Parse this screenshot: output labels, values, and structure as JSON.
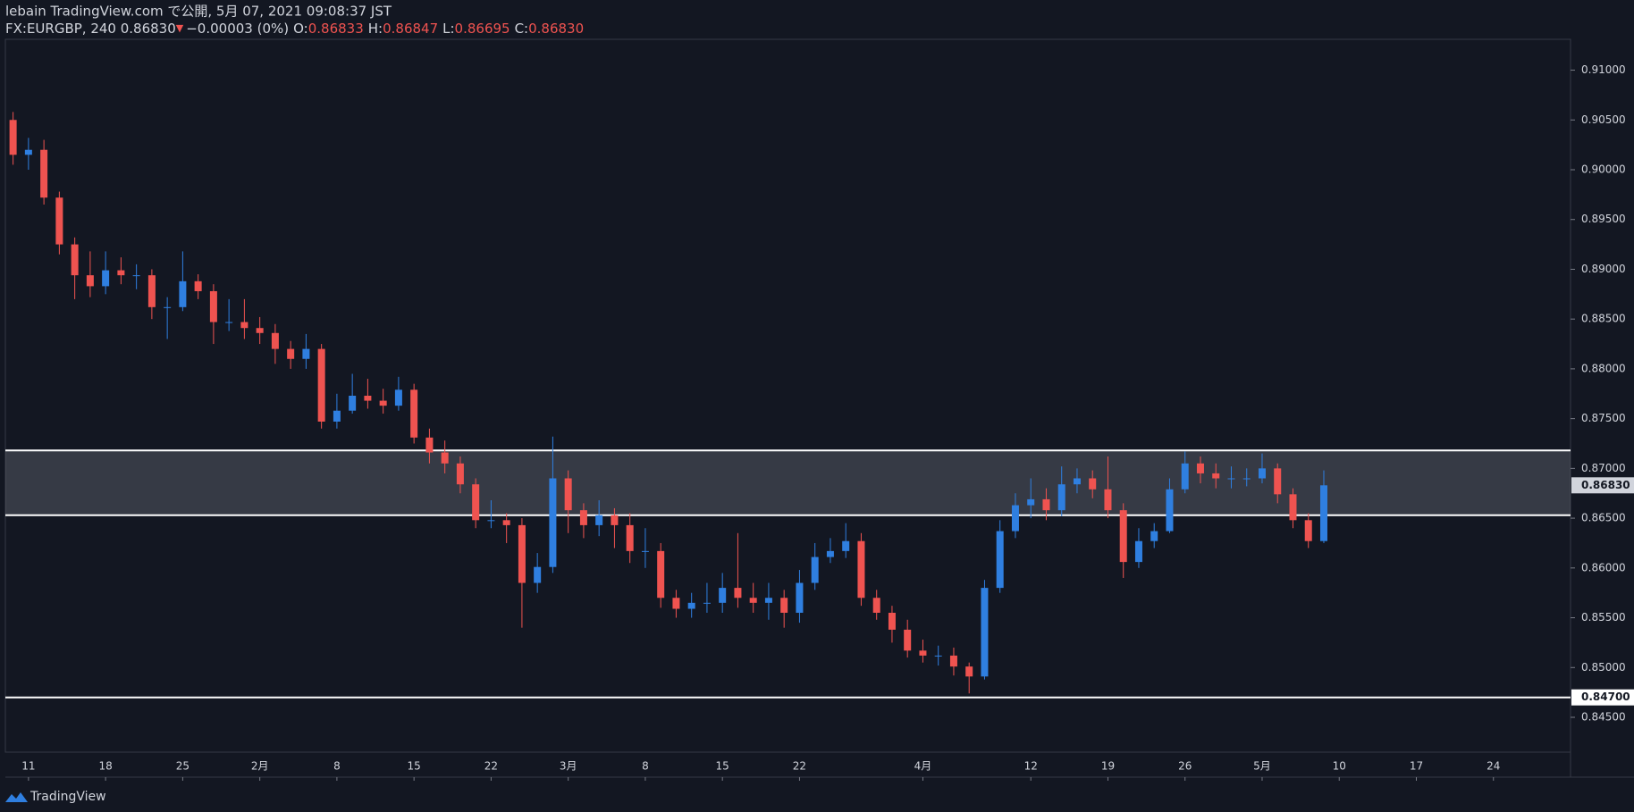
{
  "chart_data": {
    "type": "candlestick",
    "header": {
      "line1": "lebain TradingView.com で公開, 5月 07, 2021 09:08:37 JST",
      "symbol": "FX:EURGBP, 240 0.86830",
      "arrow": "▼",
      "change": "−0.00003 (0%)",
      "ohlc": [
        {
          "label": "O:",
          "value": "0.86833"
        },
        {
          "label": "H:",
          "value": "0.86847"
        },
        {
          "label": "L:",
          "value": "0.86695"
        },
        {
          "label": "C:",
          "value": "0.86830"
        }
      ]
    },
    "brand": "TradingView",
    "up_color": "#2f7fe0",
    "down_color": "#ef5350",
    "x": [
      -1,
      0,
      1,
      2,
      3,
      4,
      5,
      6,
      7,
      8,
      9,
      10,
      11,
      12,
      13,
      14,
      15,
      16,
      17,
      18,
      19,
      20,
      21,
      22,
      23,
      24,
      25,
      26,
      27,
      28,
      29,
      30,
      31,
      32,
      33,
      34,
      35,
      36,
      37,
      38,
      39,
      40,
      41,
      42,
      43,
      44,
      45,
      46,
      47,
      48,
      49,
      50,
      51,
      52,
      53,
      54,
      55,
      56,
      57,
      58,
      59,
      60,
      61,
      62,
      63,
      64,
      65,
      66,
      67,
      68,
      69,
      70,
      71,
      72,
      73,
      74,
      75,
      76,
      77,
      78,
      79,
      80,
      81,
      82,
      83,
      84
    ],
    "open": [
      0.905,
      0.9015,
      0.902,
      0.8972,
      0.8925,
      0.8894,
      0.8883,
      0.8899,
      0.8894,
      0.8894,
      0.8862,
      0.8862,
      0.8888,
      0.8878,
      0.8847,
      0.8847,
      0.8841,
      0.8836,
      0.882,
      0.881,
      0.882,
      0.8747,
      0.8758,
      0.8773,
      0.8768,
      0.8763,
      0.8779,
      0.8731,
      0.8716,
      0.8705,
      0.8684,
      0.8648,
      0.8648,
      0.8643,
      0.8585,
      0.8601,
      0.869,
      0.8658,
      0.8643,
      0.8653,
      0.8643,
      0.8617,
      0.8617,
      0.857,
      0.8559,
      0.8565,
      0.8565,
      0.858,
      0.857,
      0.8565,
      0.857,
      0.8555,
      0.8585,
      0.8611,
      0.8617,
      0.8627,
      0.857,
      0.8555,
      0.8538,
      0.8517,
      0.8512,
      0.8512,
      0.8501,
      0.8491,
      0.858,
      0.8637,
      0.8663,
      0.8669,
      0.8658,
      0.8684,
      0.869,
      0.8679,
      0.8658,
      0.8606,
      0.8627,
      0.8637,
      0.8679,
      0.8705,
      0.8695,
      0.869,
      0.869,
      0.869,
      0.87,
      0.8674,
      0.8648,
      0.8627
    ],
    "high": [
      0.9058,
      0.9032,
      0.903,
      0.8978,
      0.8932,
      0.8918,
      0.8918,
      0.8912,
      0.8905,
      0.89,
      0.8872,
      0.8918,
      0.8895,
      0.8885,
      0.887,
      0.887,
      0.8852,
      0.8845,
      0.8828,
      0.8835,
      0.8825,
      0.8775,
      0.8795,
      0.879,
      0.878,
      0.8792,
      0.8785,
      0.874,
      0.8728,
      0.8712,
      0.869,
      0.8668,
      0.8655,
      0.865,
      0.8615,
      0.8732,
      0.8698,
      0.8665,
      0.8668,
      0.866,
      0.8655,
      0.864,
      0.8625,
      0.8578,
      0.8575,
      0.8585,
      0.8595,
      0.8635,
      0.8585,
      0.8585,
      0.8578,
      0.8598,
      0.8625,
      0.863,
      0.8645,
      0.8635,
      0.8578,
      0.8562,
      0.8548,
      0.8528,
      0.8522,
      0.852,
      0.8505,
      0.8588,
      0.8648,
      0.8675,
      0.869,
      0.868,
      0.8702,
      0.87,
      0.8698,
      0.8712,
      0.8665,
      0.864,
      0.8645,
      0.869,
      0.8717,
      0.8712,
      0.8705,
      0.8702,
      0.87,
      0.8715,
      0.8705,
      0.868,
      0.8655,
      0.8698
    ],
    "low": [
      0.9005,
      0.9,
      0.8965,
      0.8915,
      0.887,
      0.8872,
      0.8875,
      0.8885,
      0.888,
      0.885,
      0.883,
      0.8858,
      0.887,
      0.8825,
      0.8838,
      0.883,
      0.8825,
      0.8805,
      0.88,
      0.88,
      0.874,
      0.874,
      0.8755,
      0.876,
      0.8755,
      0.8758,
      0.8725,
      0.8705,
      0.8695,
      0.8675,
      0.864,
      0.864,
      0.8625,
      0.854,
      0.8575,
      0.8595,
      0.8635,
      0.863,
      0.8632,
      0.862,
      0.8605,
      0.86,
      0.856,
      0.855,
      0.855,
      0.8555,
      0.8555,
      0.856,
      0.8555,
      0.8548,
      0.854,
      0.8545,
      0.8578,
      0.8605,
      0.861,
      0.8562,
      0.8548,
      0.8525,
      0.851,
      0.8505,
      0.8502,
      0.8492,
      0.8474,
      0.8488,
      0.8575,
      0.863,
      0.865,
      0.8648,
      0.8652,
      0.8675,
      0.867,
      0.865,
      0.859,
      0.86,
      0.862,
      0.8635,
      0.8675,
      0.8685,
      0.868,
      0.868,
      0.8682,
      0.8685,
      0.8665,
      0.864,
      0.862,
      0.8625
    ],
    "close": [
      0.9015,
      0.902,
      0.8972,
      0.8925,
      0.8894,
      0.8883,
      0.8899,
      0.8894,
      0.8894,
      0.8862,
      0.8862,
      0.8888,
      0.8878,
      0.8847,
      0.8847,
      0.8841,
      0.8836,
      0.882,
      0.881,
      0.882,
      0.8747,
      0.8758,
      0.8773,
      0.8768,
      0.8763,
      0.8779,
      0.8731,
      0.8716,
      0.8705,
      0.8684,
      0.8648,
      0.8648,
      0.8643,
      0.8585,
      0.8601,
      0.869,
      0.8658,
      0.8643,
      0.8653,
      0.8643,
      0.8617,
      0.8617,
      0.857,
      0.8559,
      0.8565,
      0.8565,
      0.858,
      0.857,
      0.8565,
      0.857,
      0.8555,
      0.8585,
      0.8611,
      0.8617,
      0.8627,
      0.857,
      0.8555,
      0.8538,
      0.8517,
      0.8512,
      0.8512,
      0.8501,
      0.8491,
      0.858,
      0.8637,
      0.8663,
      0.8669,
      0.8658,
      0.8684,
      0.869,
      0.8679,
      0.8658,
      0.8606,
      0.8627,
      0.8637,
      0.8679,
      0.8705,
      0.8695,
      0.869,
      0.869,
      0.869,
      0.87,
      0.8674,
      0.8648,
      0.8627,
      0.8683
    ],
    "xlim": [
      -1.5,
      100
    ],
    "ylim": [
      0.8415,
      0.9131
    ],
    "xticks": [
      {
        "value": 0,
        "label": "11"
      },
      {
        "value": 5,
        "label": "18"
      },
      {
        "value": 10,
        "label": "25"
      },
      {
        "value": 15,
        "label": "2月"
      },
      {
        "value": 20,
        "label": "8"
      },
      {
        "value": 25,
        "label": "15"
      },
      {
        "value": 30,
        "label": "22"
      },
      {
        "value": 35,
        "label": "3月"
      },
      {
        "value": 40,
        "label": "8"
      },
      {
        "value": 45,
        "label": "15"
      },
      {
        "value": 50,
        "label": "22"
      },
      {
        "value": 58,
        "label": "4月"
      },
      {
        "value": 65,
        "label": "12"
      },
      {
        "value": 70,
        "label": "19"
      },
      {
        "value": 75,
        "label": "26"
      },
      {
        "value": 80,
        "label": "5月"
      },
      {
        "value": 85,
        "label": "10"
      },
      {
        "value": 90,
        "label": "17"
      },
      {
        "value": 95,
        "label": "24"
      }
    ],
    "yticks": [
      {
        "value": 0.845,
        "label": "0.84500"
      },
      {
        "value": 0.85,
        "label": "0.85000"
      },
      {
        "value": 0.855,
        "label": "0.85500"
      },
      {
        "value": 0.86,
        "label": "0.86000"
      },
      {
        "value": 0.865,
        "label": "0.86500"
      },
      {
        "value": 0.87,
        "label": "0.87000"
      },
      {
        "value": 0.875,
        "label": "0.87500"
      },
      {
        "value": 0.88,
        "label": "0.88000"
      },
      {
        "value": 0.885,
        "label": "0.88500"
      },
      {
        "value": 0.89,
        "label": "0.89000"
      },
      {
        "value": 0.895,
        "label": "0.89500"
      },
      {
        "value": 0.9,
        "label": "0.90000"
      },
      {
        "value": 0.905,
        "label": "0.90500"
      },
      {
        "value": 0.91,
        "label": "0.91000"
      }
    ],
    "zone": [
      0.8653,
      0.8718
    ],
    "horizontal_line": {
      "value": 0.847,
      "label": "0.84700"
    },
    "last_price": {
      "value": 0.8683,
      "label": "0.86830"
    }
  }
}
